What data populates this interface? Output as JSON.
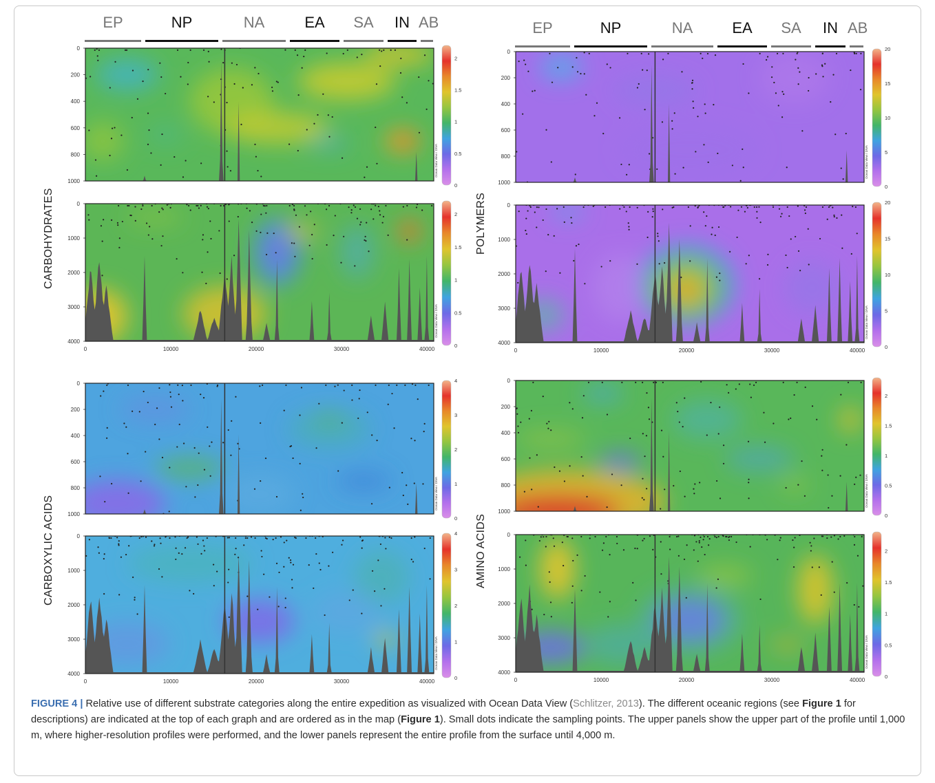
{
  "regions": [
    {
      "code": "EP",
      "bold": false
    },
    {
      "code": "NP",
      "bold": true
    },
    {
      "code": "NA",
      "bold": false
    },
    {
      "code": "EA",
      "bold": true
    },
    {
      "code": "SA",
      "bold": false
    },
    {
      "code": "IN",
      "bold": true
    },
    {
      "code": "AB",
      "bold": false
    }
  ],
  "panels": [
    {
      "label": "CARBOHYDRATES",
      "row": "upper",
      "yticks": [
        "0",
        "200",
        "400",
        "600",
        "800",
        "1000"
      ],
      "cticks": [
        "2",
        "1.5",
        "1",
        "0.5",
        "0"
      ],
      "ymax": 1000,
      "cmax": 2.2
    },
    {
      "label": "",
      "row": "full",
      "yticks": [
        "0",
        "1000",
        "2000",
        "3000",
        "4000"
      ],
      "cticks": [
        "2",
        "1.5",
        "1",
        "0.5",
        "0"
      ],
      "ymax": 4000,
      "cmax": 2.2,
      "xticks": [
        "0",
        "10000",
        "20000",
        "30000",
        "40000"
      ]
    },
    {
      "label": "POLYMERS",
      "row": "upper",
      "yticks": [
        "0",
        "200",
        "400",
        "600",
        "800",
        "1000"
      ],
      "cticks": [
        "20",
        "15",
        "10",
        "5",
        "0"
      ],
      "ymax": 1000,
      "cmax": 20
    },
    {
      "label": "",
      "row": "full",
      "yticks": [
        "0",
        "1000",
        "2000",
        "3000",
        "4000"
      ],
      "cticks": [
        "20",
        "15",
        "10",
        "5",
        "0"
      ],
      "ymax": 4000,
      "cmax": 20,
      "xticks": [
        "0",
        "10000",
        "20000",
        "30000",
        "40000"
      ]
    },
    {
      "label": "CARBOXYLIC ACIDS",
      "row": "upper",
      "yticks": [
        "0",
        "200",
        "400",
        "600",
        "800",
        "1000"
      ],
      "cticks": [
        "4",
        "3",
        "2",
        "1",
        "0"
      ],
      "ymax": 1000,
      "cmax": 4
    },
    {
      "label": "",
      "row": "full",
      "yticks": [
        "0",
        "1000",
        "2000",
        "3000",
        "4000"
      ],
      "cticks": [
        "4",
        "3",
        "2",
        "1",
        "0"
      ],
      "ymax": 4000,
      "cmax": 4,
      "xticks": [
        "0",
        "10000",
        "20000",
        "30000",
        "40000"
      ]
    },
    {
      "label": "AMINO ACIDS",
      "row": "upper",
      "yticks": [
        "0",
        "200",
        "400",
        "600",
        "800",
        "1000"
      ],
      "cticks": [
        "2",
        "1.5",
        "1",
        "0.5",
        "0"
      ],
      "ymax": 1000,
      "cmax": 2.3
    },
    {
      "label": "",
      "row": "full",
      "yticks": [
        "0",
        "1000",
        "2000",
        "3000",
        "4000"
      ],
      "cticks": [
        "2",
        "1.5",
        "1",
        "0.5",
        "0"
      ],
      "ymax": 4000,
      "cmax": 2.3,
      "xticks": [
        "0",
        "10000",
        "20000",
        "30000",
        "40000"
      ]
    }
  ],
  "watermark": "Ocean Data View / DIVA",
  "caption": {
    "fig_title": "FIGURE 4 |",
    "t1": " Relative use of different substrate categories along the entire expedition as visualized with Ocean Data View (",
    "cite": "Schlitzer, 2013",
    "t2": "). The different oceanic regions (see ",
    "ref1": "Figure 1",
    "t3": " for descriptions) are indicated at the top of each graph and are ordered as in the map (",
    "ref2": "Figure 1",
    "t4": "). Small dots indicate the sampling points. The upper panels show the upper part of the profile until 1,000 m, where higher-resolution profiles were performed, and the lower panels represent the entire profile from the surface until 4,000 m."
  },
  "colors": {
    "bold_region_bar": "#111111",
    "light_region_bar": "#777777",
    "seafloor": "#555555",
    "frame": "#c8c8c8"
  }
}
